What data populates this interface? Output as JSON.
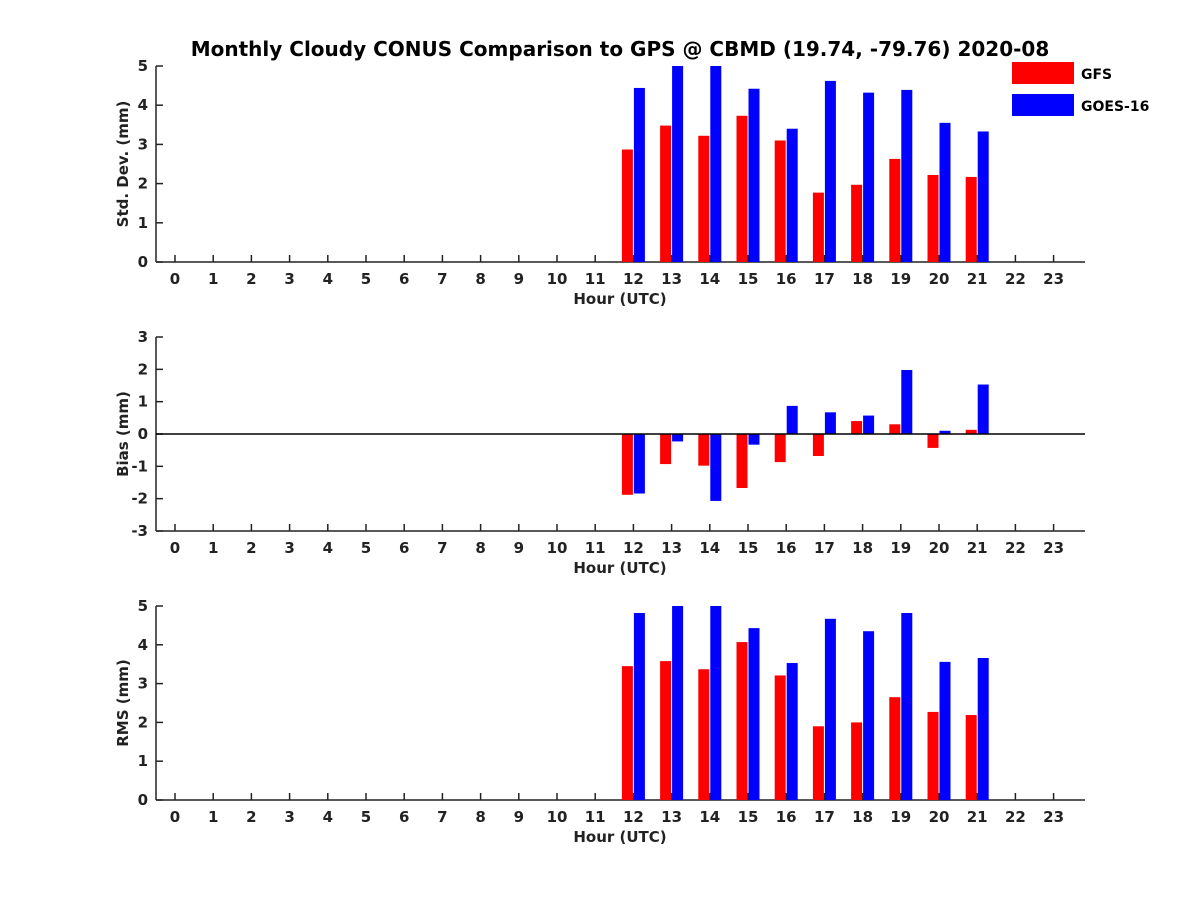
{
  "title": "Monthly Cloudy CONUS Comparison to GPS @ CBMD (19.74, -79.76) 2020-08",
  "legend": {
    "placement": "top-right",
    "entries": [
      {
        "name": "GFS",
        "color": "#ff0000"
      },
      {
        "name": "GOES-16",
        "color": "#0000ff"
      }
    ]
  },
  "chart_data": [
    {
      "type": "bar",
      "ylabel": "Std. Dev. (mm)",
      "xlabel": "Hour (UTC)",
      "categories": [
        "0",
        "1",
        "2",
        "3",
        "4",
        "5",
        "6",
        "7",
        "8",
        "9",
        "10",
        "11",
        "12",
        "13",
        "14",
        "15",
        "16",
        "17",
        "18",
        "19",
        "20",
        "21",
        "22",
        "23"
      ],
      "ylim": [
        0,
        5
      ],
      "yticks": [
        "0",
        "1",
        "2",
        "3",
        "4",
        "5"
      ],
      "zero_line": false,
      "series": [
        {
          "name": "GFS",
          "color": "#ff0000",
          "values": [
            null,
            null,
            null,
            null,
            null,
            null,
            null,
            null,
            null,
            null,
            null,
            null,
            2.87,
            3.48,
            3.22,
            3.73,
            3.1,
            1.77,
            1.97,
            2.63,
            2.22,
            2.17,
            null,
            null
          ]
        },
        {
          "name": "GOES-16",
          "color": "#0000ff",
          "values": [
            null,
            null,
            null,
            null,
            null,
            null,
            null,
            null,
            null,
            null,
            null,
            null,
            4.44,
            5.0,
            5.0,
            4.42,
            3.4,
            4.62,
            4.32,
            4.39,
            3.55,
            3.33,
            null,
            null
          ]
        }
      ]
    },
    {
      "type": "bar",
      "ylabel": "Bias (mm)",
      "xlabel": "Hour (UTC)",
      "categories": [
        "0",
        "1",
        "2",
        "3",
        "4",
        "5",
        "6",
        "7",
        "8",
        "9",
        "10",
        "11",
        "12",
        "13",
        "14",
        "15",
        "16",
        "17",
        "18",
        "19",
        "20",
        "21",
        "22",
        "23"
      ],
      "ylim": [
        -3,
        3
      ],
      "yticks": [
        "-3",
        "-2",
        "-1",
        "0",
        "1",
        "2",
        "3"
      ],
      "zero_line": true,
      "series": [
        {
          "name": "GFS",
          "color": "#ff0000",
          "values": [
            null,
            null,
            null,
            null,
            null,
            null,
            null,
            null,
            null,
            null,
            null,
            null,
            -1.88,
            -0.93,
            -0.98,
            -1.67,
            -0.87,
            -0.68,
            0.4,
            0.3,
            -0.43,
            0.13,
            null,
            null
          ]
        },
        {
          "name": "GOES-16",
          "color": "#0000ff",
          "values": [
            null,
            null,
            null,
            null,
            null,
            null,
            null,
            null,
            null,
            null,
            null,
            null,
            -1.84,
            -0.23,
            -2.07,
            -0.33,
            0.87,
            0.67,
            0.57,
            1.98,
            0.1,
            1.53,
            null,
            null
          ]
        }
      ]
    },
    {
      "type": "bar",
      "ylabel": "RMS (mm)",
      "xlabel": "Hour (UTC)",
      "categories": [
        "0",
        "1",
        "2",
        "3",
        "4",
        "5",
        "6",
        "7",
        "8",
        "9",
        "10",
        "11",
        "12",
        "13",
        "14",
        "15",
        "16",
        "17",
        "18",
        "19",
        "20",
        "21",
        "22",
        "23"
      ],
      "ylim": [
        0,
        5
      ],
      "yticks": [
        "0",
        "1",
        "2",
        "3",
        "4",
        "5"
      ],
      "zero_line": false,
      "series": [
        {
          "name": "GFS",
          "color": "#ff0000",
          "values": [
            null,
            null,
            null,
            null,
            null,
            null,
            null,
            null,
            null,
            null,
            null,
            null,
            3.45,
            3.58,
            3.37,
            4.07,
            3.21,
            1.9,
            2.0,
            2.65,
            2.27,
            2.19,
            null,
            null
          ]
        },
        {
          "name": "GOES-16",
          "color": "#0000ff",
          "values": [
            null,
            null,
            null,
            null,
            null,
            null,
            null,
            null,
            null,
            null,
            null,
            null,
            4.82,
            5.0,
            5.0,
            4.43,
            3.53,
            4.67,
            4.35,
            4.82,
            3.56,
            3.66,
            null,
            null
          ]
        }
      ]
    }
  ]
}
